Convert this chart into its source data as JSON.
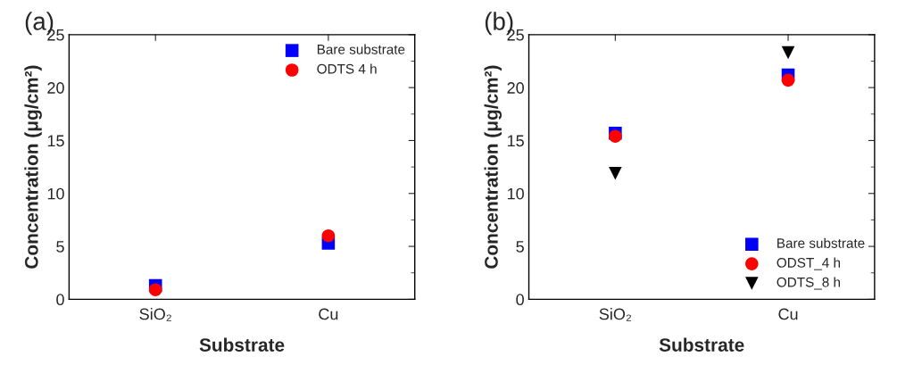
{
  "chart_data": [
    {
      "type": "scatter",
      "title": "(a)",
      "xlabel": "Substrate",
      "ylabel": "Concentration (μg/cm²)",
      "categories": [
        "SiO₂",
        "Cu"
      ],
      "ylim": [
        0,
        25
      ],
      "yticks": [
        0,
        5,
        10,
        15,
        20,
        25
      ],
      "legend": "top right",
      "grid": false,
      "series": [
        {
          "name": "Bare substrate",
          "color": "#0000ff",
          "marker": "square",
          "values": [
            1.3,
            5.3
          ]
        },
        {
          "name": "ODTS 4 h",
          "color": "#ff0000",
          "marker": "circle",
          "values": [
            0.9,
            6.0
          ]
        }
      ]
    },
    {
      "type": "scatter",
      "title": "(b)",
      "xlabel": "Substrate",
      "ylabel": "Concentration (μg/cm²)",
      "categories": [
        "SiO₂",
        "Cu"
      ],
      "ylim": [
        0,
        25
      ],
      "yticks": [
        0,
        5,
        10,
        15,
        20,
        25
      ],
      "legend": "bottom right",
      "grid": false,
      "series": [
        {
          "name": "Bare substrate",
          "color": "#0000ff",
          "marker": "square",
          "values": [
            15.7,
            21.2
          ]
        },
        {
          "name": "ODST_4 h",
          "color": "#ff0000",
          "marker": "circle",
          "values": [
            15.4,
            20.7
          ]
        },
        {
          "name": "ODTS_8 h",
          "color": "#000000",
          "marker": "triangle",
          "values": [
            11.9,
            23.3
          ]
        }
      ]
    }
  ]
}
